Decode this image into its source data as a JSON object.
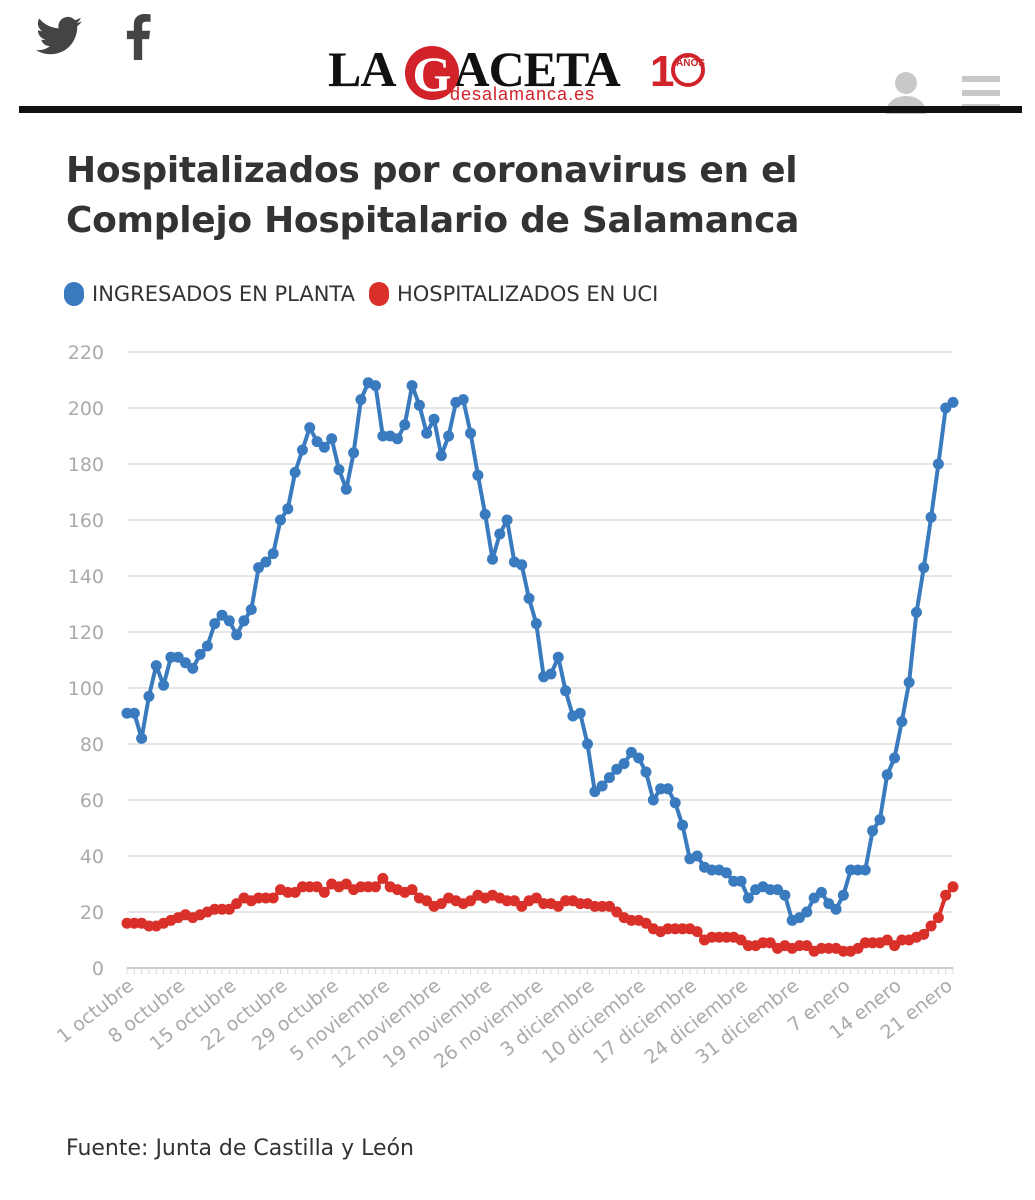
{
  "header": {
    "logo_text": "LAGACETA",
    "logo_subtext": "desalamanca.es",
    "anniversary_text": "AÑOS",
    "social": [
      "twitter-icon",
      "facebook-icon"
    ],
    "actions": [
      "user-icon",
      "menu-icon"
    ]
  },
  "colors": {
    "planta": "#3a7bbf",
    "uci": "#d9312a",
    "grid": "#e6e6e6",
    "axis_text": "#aaaaaa",
    "brand_red": "#d2222a"
  },
  "title": "Hospitalizados por coronavirus en el Complejo Hospitalario de Salamanca",
  "legend": [
    {
      "label": "INGRESADOS EN PLANTA"
    },
    {
      "label": "HOSPITALIZADOS EN UCI"
    }
  ],
  "source": "Fuente: Junta de Castilla y León",
  "chart_data": {
    "type": "line",
    "title": "Hospitalizados por coronavirus en el Complejo Hospitalario de Salamanca",
    "xlabel": "",
    "ylabel": "",
    "ylim": [
      0,
      220
    ],
    "yticks": [
      0,
      20,
      40,
      60,
      80,
      100,
      120,
      140,
      160,
      180,
      200,
      220
    ],
    "x_tick_labels": [
      "1 octubre",
      "8 octubre",
      "15 octubre",
      "22 octubre",
      "29 octubre",
      "5 noviembre",
      "12 noviembre",
      "19 noviembre",
      "26 noviembre",
      "3 diciembre",
      "10 diciembre",
      "17 diciembre",
      "24 diciembre",
      "31 diciembre",
      "7 enero",
      "14 enero",
      "21 enero"
    ],
    "x_tick_index": [
      0,
      7,
      14,
      21,
      28,
      35,
      42,
      49,
      56,
      63,
      70,
      77,
      84,
      91,
      98,
      105,
      112
    ],
    "series": [
      {
        "name": "INGRESADOS EN PLANTA",
        "values": [
          91,
          91,
          82,
          97,
          108,
          101,
          111,
          111,
          109,
          107,
          112,
          115,
          123,
          126,
          124,
          119,
          124,
          128,
          143,
          145,
          148,
          160,
          164,
          177,
          185,
          193,
          188,
          186,
          189,
          178,
          171,
          184,
          203,
          209,
          208,
          190,
          190,
          189,
          194,
          208,
          201,
          191,
          196,
          183,
          190,
          202,
          203,
          191,
          176,
          162,
          146,
          155,
          160,
          145,
          144,
          132,
          123,
          104,
          105,
          111,
          99,
          90,
          91,
          80,
          63,
          65,
          68,
          71,
          73,
          77,
          75,
          70,
          60,
          64,
          64,
          59,
          51,
          39,
          40,
          36,
          35,
          35,
          34,
          31,
          31,
          25,
          28,
          29,
          28,
          28,
          26,
          17,
          18,
          20,
          25,
          27,
          23,
          21,
          26,
          35,
          35,
          35,
          49,
          53,
          69,
          75,
          88,
          102,
          127,
          143,
          161,
          180,
          200,
          202
        ]
      },
      {
        "name": "HOSPITALIZADOS EN UCI",
        "values": [
          16,
          16,
          16,
          15,
          15,
          16,
          17,
          18,
          19,
          18,
          19,
          20,
          21,
          21,
          21,
          23,
          25,
          24,
          25,
          25,
          25,
          28,
          27,
          27,
          29,
          29,
          29,
          27,
          30,
          29,
          30,
          28,
          29,
          29,
          29,
          32,
          29,
          28,
          27,
          28,
          25,
          24,
          22,
          23,
          25,
          24,
          23,
          24,
          26,
          25,
          26,
          25,
          24,
          24,
          22,
          24,
          25,
          23,
          23,
          22,
          24,
          24,
          23,
          23,
          22,
          22,
          22,
          20,
          18,
          17,
          17,
          16,
          14,
          13,
          14,
          14,
          14,
          14,
          13,
          10,
          11,
          11,
          11,
          11,
          10,
          8,
          8,
          9,
          9,
          7,
          8,
          7,
          8,
          8,
          6,
          7,
          7,
          7,
          6,
          6,
          7,
          9,
          9,
          9,
          10,
          8,
          10,
          10,
          11,
          12,
          15,
          18,
          26,
          29
        ]
      }
    ]
  }
}
